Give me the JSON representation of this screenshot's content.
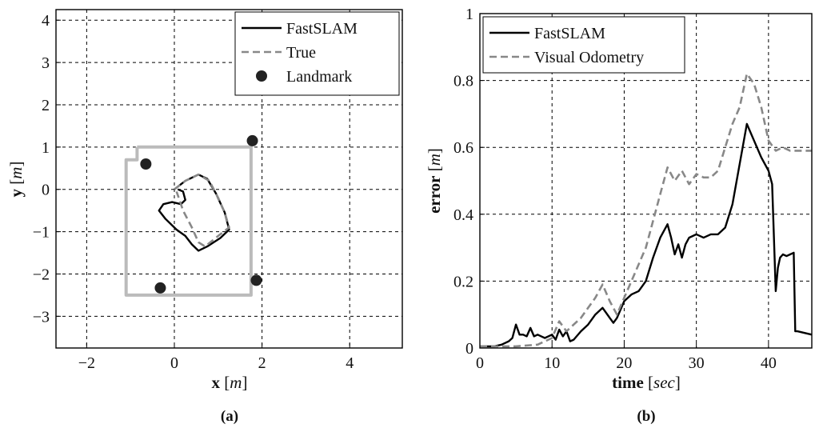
{
  "chart_data": [
    {
      "type": "line",
      "caption": "(a)",
      "xlabel": {
        "bold": "x",
        "unit": "m"
      },
      "ylabel": {
        "bold": "y",
        "unit": "m"
      },
      "xlim": [
        -2.7,
        5.2
      ],
      "ylim": [
        -3.75,
        4.25
      ],
      "xticks": [
        -2,
        0,
        2,
        4
      ],
      "yticks": [
        -3,
        -2,
        -1,
        0,
        1,
        2,
        3,
        4
      ],
      "grid": true,
      "legend": {
        "position": "top-right",
        "entries": [
          "FastSLAM",
          "True",
          "Landmark"
        ]
      },
      "series": [
        {
          "name": "FastSLAM",
          "color": "#000000",
          "style": "solid",
          "points": [
            [
              0,
              0
            ],
            [
              0.25,
              0.2
            ],
            [
              0.55,
              0.35
            ],
            [
              0.75,
              0.25
            ],
            [
              0.95,
              -0.1
            ],
            [
              1.15,
              -0.55
            ],
            [
              1.25,
              -0.95
            ],
            [
              1.05,
              -1.15
            ],
            [
              0.75,
              -1.35
            ],
            [
              0.55,
              -1.45
            ],
            [
              0.4,
              -1.3
            ],
            [
              0.25,
              -1.1
            ],
            [
              0.05,
              -0.95
            ],
            [
              -0.2,
              -0.7
            ],
            [
              -0.35,
              -0.5
            ],
            [
              -0.25,
              -0.35
            ],
            [
              -0.05,
              -0.3
            ],
            [
              0.15,
              -0.35
            ],
            [
              0.25,
              -0.25
            ],
            [
              0.2,
              -0.05
            ],
            [
              0.08,
              0.0
            ]
          ]
        },
        {
          "name": "True",
          "color": "#888888",
          "style": "dashed",
          "points": [
            [
              0,
              0
            ],
            [
              0.25,
              0.2
            ],
            [
              0.55,
              0.35
            ],
            [
              0.8,
              0.2
            ],
            [
              1.0,
              -0.2
            ],
            [
              1.15,
              -0.55
            ],
            [
              1.25,
              -0.9
            ],
            [
              1.0,
              -1.1
            ],
            [
              0.7,
              -1.35
            ],
            [
              0.55,
              -1.25
            ],
            [
              0.4,
              -0.9
            ],
            [
              0.2,
              -0.5
            ],
            [
              0.1,
              -0.2
            ],
            [
              0.05,
              -0.05
            ]
          ]
        },
        {
          "name": "Landmark",
          "color": "#222222",
          "style": "markers",
          "points": [
            [
              1.78,
              1.15
            ],
            [
              -0.65,
              0.6
            ],
            [
              1.87,
              -2.15
            ],
            [
              -0.32,
              -2.33
            ]
          ]
        },
        {
          "color": "#bbbbbb",
          "style": "thick-solid",
          "points": [
            [
              -0.85,
              1.0
            ],
            [
              1.75,
              1.0
            ],
            [
              1.75,
              -2.5
            ],
            [
              -1.1,
              -2.5
            ],
            [
              -1.1,
              0.7
            ],
            [
              -0.85,
              0.7
            ],
            [
              -0.85,
              1.0
            ]
          ]
        }
      ]
    },
    {
      "type": "line",
      "caption": "(b)",
      "xlabel": {
        "bold": "time",
        "unit": "sec"
      },
      "ylabel": {
        "bold": "error",
        "unit": "m"
      },
      "xlim": [
        0,
        46
      ],
      "ylim": [
        0,
        1
      ],
      "xticks": [
        0,
        10,
        20,
        30,
        40
      ],
      "yticks": [
        0,
        0.2,
        0.4,
        0.6,
        0.8,
        1
      ],
      "grid": true,
      "legend": {
        "position": "top-left",
        "entries": [
          "FastSLAM",
          "Visual Odometry"
        ]
      },
      "series": [
        {
          "name": "FastSLAM",
          "color": "#000000",
          "style": "solid",
          "points": [
            [
              0,
              0.005
            ],
            [
              2,
              0.005
            ],
            [
              3,
              0.01
            ],
            [
              4,
              0.02
            ],
            [
              4.5,
              0.03
            ],
            [
              5,
              0.07
            ],
            [
              5.5,
              0.04
            ],
            [
              6,
              0.04
            ],
            [
              6.5,
              0.035
            ],
            [
              7,
              0.06
            ],
            [
              7.5,
              0.035
            ],
            [
              8,
              0.04
            ],
            [
              8.5,
              0.035
            ],
            [
              9,
              0.03
            ],
            [
              10,
              0.04
            ],
            [
              10.5,
              0.025
            ],
            [
              11,
              0.055
            ],
            [
              11.5,
              0.035
            ],
            [
              12,
              0.05
            ],
            [
              12.5,
              0.02
            ],
            [
              13,
              0.025
            ],
            [
              14,
              0.05
            ],
            [
              15,
              0.07
            ],
            [
              16,
              0.1
            ],
            [
              17,
              0.12
            ],
            [
              18,
              0.09
            ],
            [
              18.5,
              0.075
            ],
            [
              19,
              0.09
            ],
            [
              20,
              0.14
            ],
            [
              21,
              0.16
            ],
            [
              22,
              0.17
            ],
            [
              23,
              0.2
            ],
            [
              24,
              0.27
            ],
            [
              25,
              0.33
            ],
            [
              26,
              0.37
            ],
            [
              26.5,
              0.33
            ],
            [
              27,
              0.28
            ],
            [
              27.5,
              0.31
            ],
            [
              28,
              0.27
            ],
            [
              28.5,
              0.31
            ],
            [
              29,
              0.33
            ],
            [
              30,
              0.34
            ],
            [
              31,
              0.33
            ],
            [
              32,
              0.34
            ],
            [
              33,
              0.34
            ],
            [
              34,
              0.36
            ],
            [
              35,
              0.43
            ],
            [
              36,
              0.55
            ],
            [
              37,
              0.67
            ],
            [
              38,
              0.62
            ],
            [
              39,
              0.57
            ],
            [
              40,
              0.53
            ],
            [
              40.5,
              0.49
            ],
            [
              41,
              0.17
            ],
            [
              41.3,
              0.24
            ],
            [
              41.6,
              0.27
            ],
            [
              42,
              0.28
            ],
            [
              42.5,
              0.275
            ],
            [
              43,
              0.28
            ],
            [
              43.5,
              0.285
            ],
            [
              43.7,
              0.05
            ],
            [
              44,
              0.05
            ],
            [
              45,
              0.045
            ],
            [
              46,
              0.04
            ]
          ]
        },
        {
          "name": "Visual Odometry",
          "color": "#888888",
          "style": "dashed",
          "points": [
            [
              0,
              0.005
            ],
            [
              5,
              0.005
            ],
            [
              8,
              0.01
            ],
            [
              10,
              0.03
            ],
            [
              11,
              0.08
            ],
            [
              12,
              0.05
            ],
            [
              13,
              0.07
            ],
            [
              14,
              0.09
            ],
            [
              15,
              0.12
            ],
            [
              16,
              0.15
            ],
            [
              17,
              0.19
            ],
            [
              18,
              0.14
            ],
            [
              19,
              0.1
            ],
            [
              20,
              0.15
            ],
            [
              21,
              0.2
            ],
            [
              22,
              0.25
            ],
            [
              23,
              0.3
            ],
            [
              24,
              0.38
            ],
            [
              25,
              0.46
            ],
            [
              26,
              0.54
            ],
            [
              27,
              0.5
            ],
            [
              28,
              0.53
            ],
            [
              29,
              0.49
            ],
            [
              30,
              0.52
            ],
            [
              31,
              0.51
            ],
            [
              32,
              0.51
            ],
            [
              33,
              0.53
            ],
            [
              34,
              0.6
            ],
            [
              35,
              0.67
            ],
            [
              36,
              0.72
            ],
            [
              37,
              0.82
            ],
            [
              38,
              0.79
            ],
            [
              39,
              0.72
            ],
            [
              40,
              0.62
            ],
            [
              41,
              0.59
            ],
            [
              42,
              0.6
            ],
            [
              43,
              0.59
            ],
            [
              46,
              0.59
            ]
          ]
        }
      ]
    }
  ]
}
